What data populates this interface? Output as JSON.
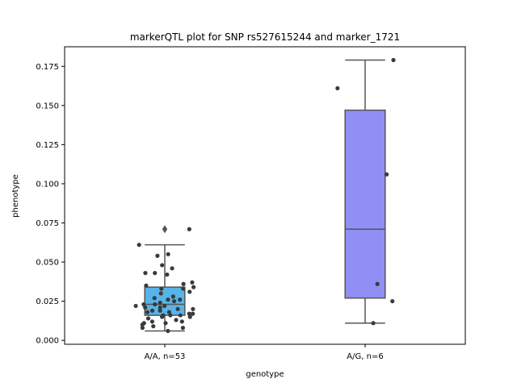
{
  "chart_data": {
    "type": "box",
    "title": "markerQTL plot for SNP rs527615244 and marker_1721",
    "xlabel": "genotype",
    "ylabel": "phenotype",
    "categories": [
      "A/A, n=53",
      "A/G, n=6"
    ],
    "ylim": [
      -0.0025,
      0.1875
    ],
    "yticks": [
      "0.000",
      "0.025",
      "0.050",
      "0.075",
      "0.100",
      "0.125",
      "0.150",
      "0.175"
    ],
    "grid": false,
    "boxes": [
      {
        "category": "A/A, n=53",
        "color": "#56B4E9",
        "q1": 0.016,
        "median": 0.023,
        "q3": 0.034,
        "whisker_low": 0.006,
        "whisker_high": 0.061,
        "outliers": [
          0.071
        ]
      },
      {
        "category": "A/G, n=6",
        "color": "#8F8FF5",
        "q1": 0.027,
        "median": 0.071,
        "q3": 0.147,
        "whisker_low": 0.011,
        "whisker_high": 0.179,
        "outliers": []
      }
    ],
    "points": [
      {
        "category": "A/A, n=53",
        "values": [
          0.071,
          0.061,
          0.055,
          0.054,
          0.048,
          0.046,
          0.043,
          0.043,
          0.042,
          0.037,
          0.036,
          0.035,
          0.034,
          0.033,
          0.033,
          0.031,
          0.03,
          0.028,
          0.027,
          0.026,
          0.026,
          0.025,
          0.024,
          0.023,
          0.023,
          0.022,
          0.022,
          0.021,
          0.021,
          0.02,
          0.02,
          0.019,
          0.019,
          0.018,
          0.018,
          0.017,
          0.017,
          0.016,
          0.016,
          0.016,
          0.015,
          0.015,
          0.014,
          0.013,
          0.012,
          0.012,
          0.011,
          0.011,
          0.01,
          0.009,
          0.008,
          0.008,
          0.006
        ]
      },
      {
        "category": "A/G, n=6",
        "values": [
          0.179,
          0.161,
          0.106,
          0.036,
          0.025,
          0.011
        ]
      }
    ],
    "point_color": "#3a3a3a",
    "box_edge_color": "#555555"
  }
}
